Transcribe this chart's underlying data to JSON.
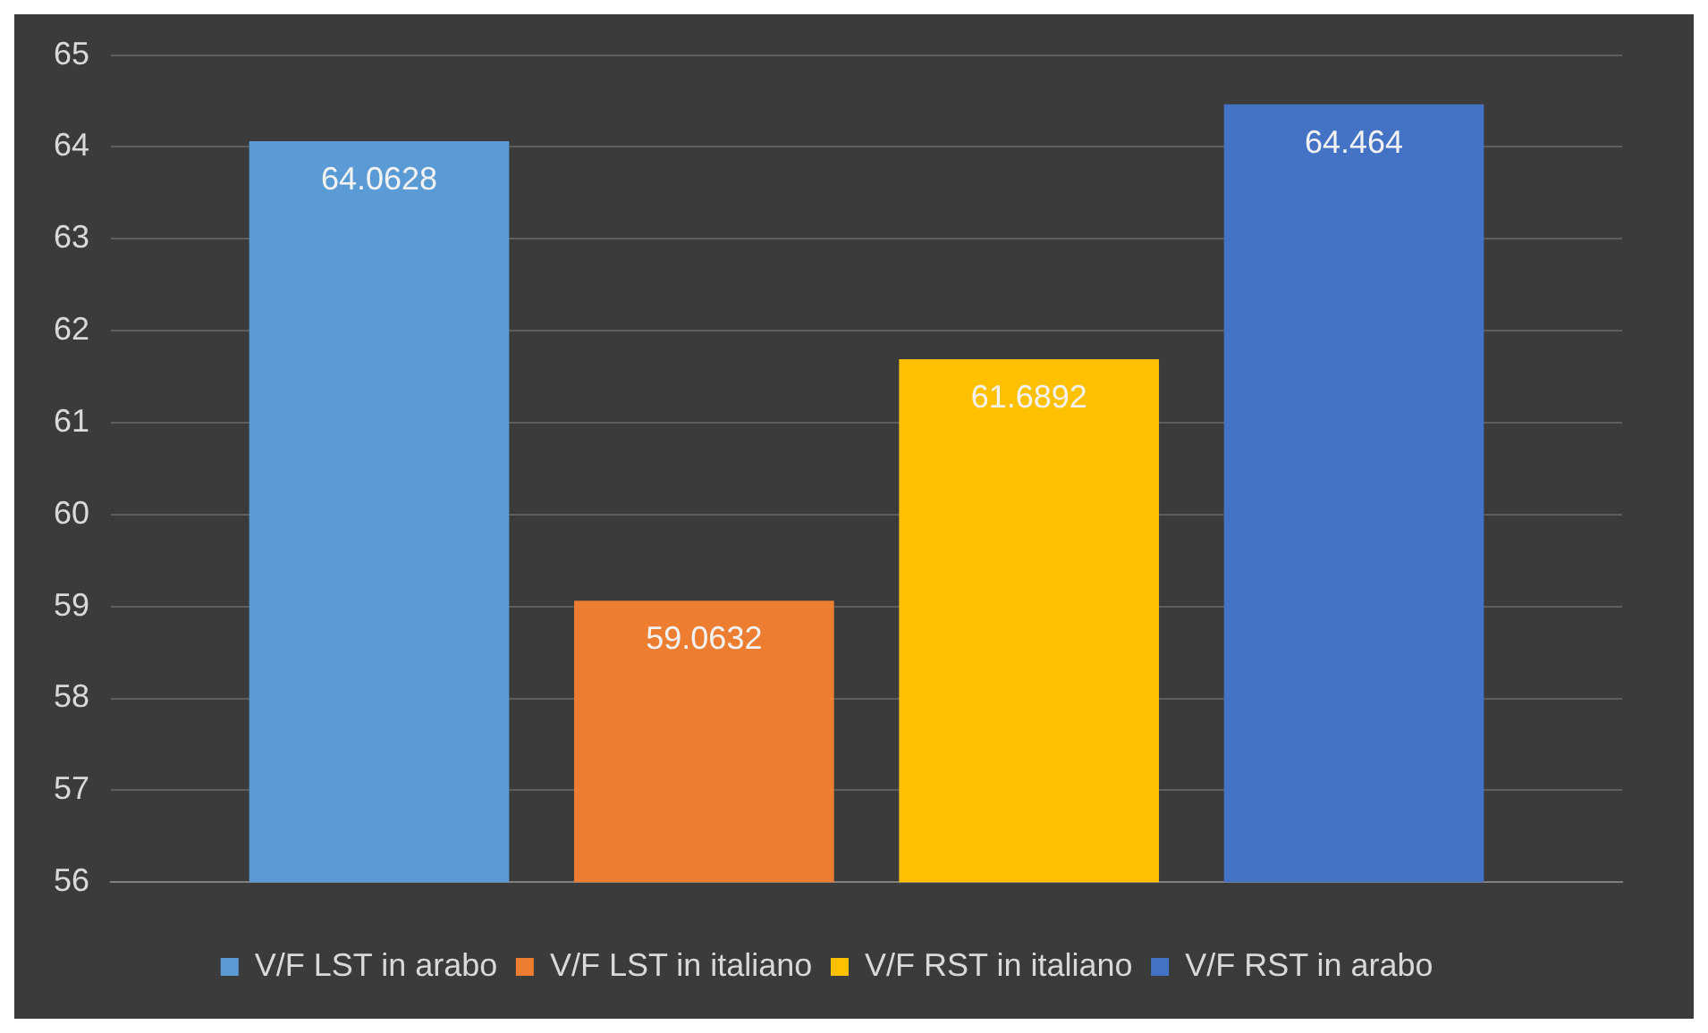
{
  "chart_data": {
    "type": "bar",
    "categories": [
      null
    ],
    "series": [
      {
        "name": "V/F LST in arabo",
        "color": "#5b9bd5",
        "values": [
          64.0628
        ]
      },
      {
        "name": "V/F LST in italiano",
        "color": "#ed7d31",
        "values": [
          59.0632
        ]
      },
      {
        "name": "V/F RST in italiano",
        "color": "#ffc000",
        "values": [
          61.6892
        ]
      },
      {
        "name": "V/F RST in arabo",
        "color": "#4472c4",
        "values": [
          64.464
        ]
      }
    ],
    "ylim": [
      56,
      65
    ],
    "yticks": [
      56,
      57,
      58,
      59,
      60,
      61,
      62,
      63,
      64,
      65
    ],
    "grid": "y",
    "legend": "bottom",
    "data_labels": true
  }
}
